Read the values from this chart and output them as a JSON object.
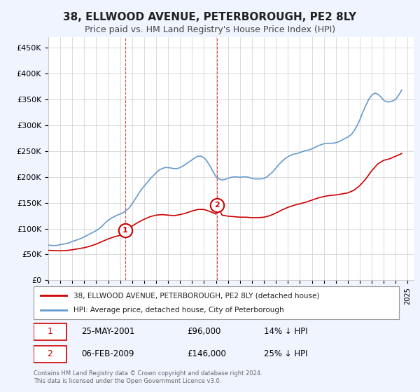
{
  "title": "38, ELLWOOD AVENUE, PETERBOROUGH, PE2 8LY",
  "subtitle": "Price paid vs. HM Land Registry's House Price Index (HPI)",
  "ylabel_ticks": [
    "£0",
    "£50K",
    "£100K",
    "£150K",
    "£200K",
    "£250K",
    "£300K",
    "£350K",
    "£400K",
    "£450K"
  ],
  "ytick_vals": [
    0,
    50000,
    100000,
    150000,
    200000,
    250000,
    300000,
    350000,
    400000,
    450000
  ],
  "ylim": [
    0,
    470000
  ],
  "xlim_start": 1995.0,
  "xlim_end": 2025.5,
  "legend_line1": "38, ELLWOOD AVENUE, PETERBOROUGH, PE2 8LY (detached house)",
  "legend_line2": "HPI: Average price, detached house, City of Peterborough",
  "transaction1_label": "1",
  "transaction1_date": "25-MAY-2001",
  "transaction1_price": "£96,000",
  "transaction1_pct": "14% ↓ HPI",
  "transaction1_year": 2001.4,
  "transaction1_value": 96000,
  "transaction2_label": "2",
  "transaction2_date": "06-FEB-2009",
  "transaction2_price": "£146,000",
  "transaction2_pct": "25% ↓ HPI",
  "transaction2_year": 2009.1,
  "transaction2_value": 146000,
  "red_color": "#cc0000",
  "blue_color": "#6699cc",
  "footer": "Contains HM Land Registry data © Crown copyright and database right 2024.\nThis data is licensed under the Open Government Licence v3.0.",
  "hpi_years": [
    1995.0,
    1995.25,
    1995.5,
    1995.75,
    1996.0,
    1996.25,
    1996.5,
    1996.75,
    1997.0,
    1997.25,
    1997.5,
    1997.75,
    1998.0,
    1998.25,
    1998.5,
    1998.75,
    1999.0,
    1999.25,
    1999.5,
    1999.75,
    2000.0,
    2000.25,
    2000.5,
    2000.75,
    2001.0,
    2001.25,
    2001.5,
    2001.75,
    2002.0,
    2002.25,
    2002.5,
    2002.75,
    2003.0,
    2003.25,
    2003.5,
    2003.75,
    2004.0,
    2004.25,
    2004.5,
    2004.75,
    2005.0,
    2005.25,
    2005.5,
    2005.75,
    2006.0,
    2006.25,
    2006.5,
    2006.75,
    2007.0,
    2007.25,
    2007.5,
    2007.75,
    2008.0,
    2008.25,
    2008.5,
    2008.75,
    2009.0,
    2009.25,
    2009.5,
    2009.75,
    2010.0,
    2010.25,
    2010.5,
    2010.75,
    2011.0,
    2011.25,
    2011.5,
    2011.75,
    2012.0,
    2012.25,
    2012.5,
    2012.75,
    2013.0,
    2013.25,
    2013.5,
    2013.75,
    2014.0,
    2014.25,
    2014.5,
    2014.75,
    2015.0,
    2015.25,
    2015.5,
    2015.75,
    2016.0,
    2016.25,
    2016.5,
    2016.75,
    2017.0,
    2017.25,
    2017.5,
    2017.75,
    2018.0,
    2018.25,
    2018.5,
    2018.75,
    2019.0,
    2019.25,
    2019.5,
    2019.75,
    2020.0,
    2020.25,
    2020.5,
    2020.75,
    2021.0,
    2021.25,
    2021.5,
    2021.75,
    2022.0,
    2022.25,
    2022.5,
    2022.75,
    2023.0,
    2023.25,
    2023.5,
    2023.75,
    2024.0,
    2024.25,
    2024.5
  ],
  "hpi_values": [
    68000,
    67500,
    67000,
    67500,
    69000,
    70000,
    71000,
    72500,
    75000,
    77000,
    79000,
    81000,
    84000,
    87000,
    90000,
    93000,
    96000,
    100000,
    105000,
    111000,
    116000,
    120000,
    123000,
    126000,
    128000,
    131000,
    135000,
    140000,
    148000,
    157000,
    166000,
    175000,
    182000,
    189000,
    196000,
    202000,
    208000,
    213000,
    216000,
    218000,
    218000,
    217000,
    216000,
    216000,
    218000,
    221000,
    225000,
    229000,
    233000,
    237000,
    240000,
    240000,
    237000,
    230000,
    221000,
    210000,
    200000,
    196000,
    194000,
    195000,
    197000,
    199000,
    200000,
    200000,
    199000,
    200000,
    200000,
    199000,
    197000,
    196000,
    196000,
    196000,
    197000,
    200000,
    205000,
    210000,
    217000,
    224000,
    230000,
    235000,
    239000,
    242000,
    244000,
    245000,
    247000,
    249000,
    251000,
    252000,
    254000,
    257000,
    260000,
    262000,
    264000,
    265000,
    265000,
    265000,
    266000,
    268000,
    271000,
    274000,
    277000,
    281000,
    288000,
    298000,
    310000,
    325000,
    338000,
    350000,
    358000,
    362000,
    360000,
    355000,
    348000,
    345000,
    345000,
    347000,
    350000,
    358000,
    368000
  ],
  "red_years": [
    1995.0,
    1995.5,
    1996.0,
    1996.5,
    1997.0,
    1997.5,
    1998.0,
    1998.5,
    1999.0,
    1999.5,
    2000.0,
    2000.5,
    2001.0,
    2001.4,
    2001.5,
    2002.0,
    2002.5,
    2003.0,
    2003.5,
    2004.0,
    2004.5,
    2005.0,
    2005.5,
    2006.0,
    2006.5,
    2007.0,
    2007.5,
    2008.0,
    2008.5,
    2009.0,
    2009.1,
    2009.5,
    2010.0,
    2010.5,
    2011.0,
    2011.5,
    2012.0,
    2012.5,
    2013.0,
    2013.5,
    2014.0,
    2014.5,
    2015.0,
    2015.5,
    2016.0,
    2016.5,
    2017.0,
    2017.5,
    2018.0,
    2018.5,
    2019.0,
    2019.5,
    2020.0,
    2020.5,
    2021.0,
    2021.5,
    2022.0,
    2022.5,
    2023.0,
    2023.5,
    2024.0,
    2024.5
  ],
  "red_values": [
    58000,
    57500,
    57000,
    57500,
    59000,
    61000,
    63000,
    66000,
    70000,
    75000,
    80000,
    84000,
    87000,
    96000,
    96000,
    105000,
    112000,
    118000,
    123000,
    126000,
    127000,
    126000,
    125000,
    127000,
    130000,
    134000,
    137000,
    137000,
    133000,
    128000,
    146000,
    126000,
    124000,
    123000,
    122000,
    122000,
    121000,
    121000,
    122000,
    125000,
    130000,
    136000,
    141000,
    145000,
    148000,
    151000,
    155000,
    159000,
    162000,
    164000,
    165000,
    167000,
    169000,
    174000,
    183000,
    196000,
    212000,
    225000,
    232000,
    235000,
    240000,
    245000
  ],
  "background_color": "#f0f4ff",
  "plot_bg_color": "#ffffff"
}
